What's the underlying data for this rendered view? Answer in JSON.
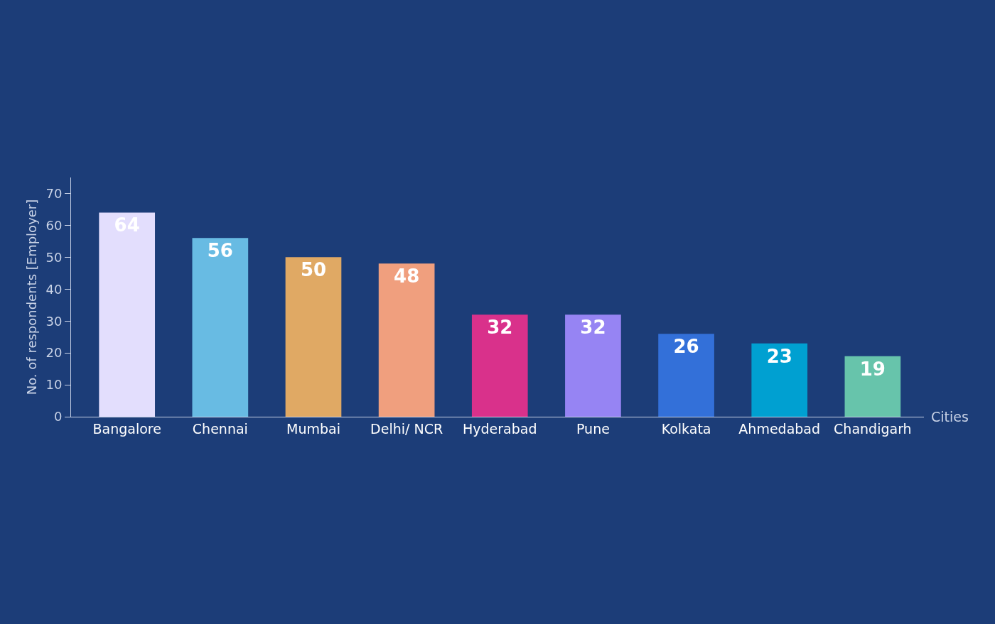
{
  "chart_data": {
    "type": "bar",
    "categories": [
      "Bangalore",
      "Chennai",
      "Mumbai",
      "Delhi/ NCR",
      "Hyderabad",
      "Pune",
      "Kolkata",
      "Ahmedabad",
      "Chandigarh"
    ],
    "values": [
      64,
      56,
      50,
      48,
      32,
      32,
      26,
      23,
      19
    ],
    "colors": [
      "#e3defd",
      "#68bbe3",
      "#e0a964",
      "#f09f7e",
      "#d9318b",
      "#9684f3",
      "#3370d9",
      "#00a0d1",
      "#67c4ab"
    ],
    "xlabel": "Cities",
    "ylabel": "No. of respondents [Employer]",
    "ylim": [
      0,
      75
    ],
    "yticks": [
      0,
      10,
      20,
      30,
      40,
      50,
      60,
      70
    ],
    "data_labels": true
  }
}
